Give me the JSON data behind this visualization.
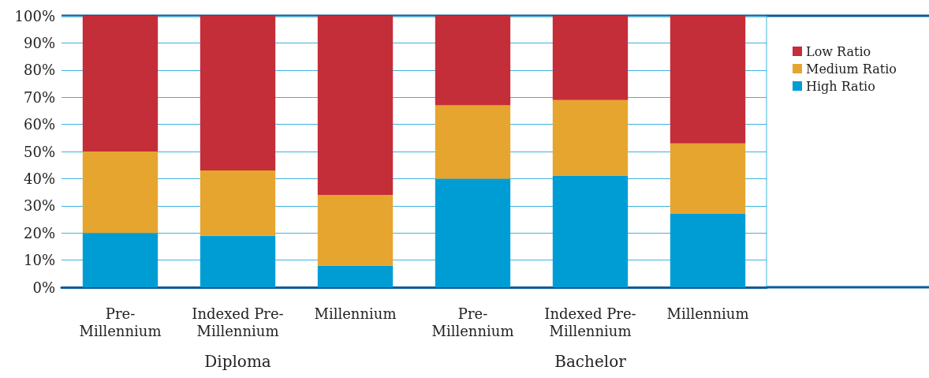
{
  "chart_data": {
    "type": "bar",
    "stacked": true,
    "categories": [
      "Pre-Millennium",
      "Indexed Pre-Millennium",
      "Millennium",
      "Pre-Millennium",
      "Indexed Pre-Millennium",
      "Millennium"
    ],
    "series": [
      {
        "name": "High Ratio",
        "color": "#009dd5",
        "values": [
          20,
          19,
          8,
          40,
          41,
          27
        ]
      },
      {
        "name": "Medium Ratio",
        "color": "#e6a52f",
        "values": [
          30,
          24,
          26,
          27,
          28,
          26
        ]
      },
      {
        "name": "Low Ratio",
        "color": "#c32e39",
        "values": [
          50,
          57,
          66,
          33,
          31,
          47
        ]
      }
    ],
    "ylim": [
      0,
      100
    ],
    "yticks": [
      {
        "value": 0,
        "label": "0%"
      },
      {
        "value": 10,
        "label": "10%"
      },
      {
        "value": 20,
        "label": "20%"
      },
      {
        "value": 30,
        "label": "30%"
      },
      {
        "value": 40,
        "label": "40%"
      },
      {
        "value": 50,
        "label": "50%"
      },
      {
        "value": 60,
        "label": "60%"
      },
      {
        "value": 70,
        "label": "70%"
      },
      {
        "value": 80,
        "label": "80%"
      },
      {
        "value": 90,
        "label": "90%"
      },
      {
        "value": 100,
        "label": "100%"
      }
    ],
    "annotations": [
      "Diploma",
      "Bachelor"
    ],
    "grid": "y",
    "legend": "top right"
  }
}
